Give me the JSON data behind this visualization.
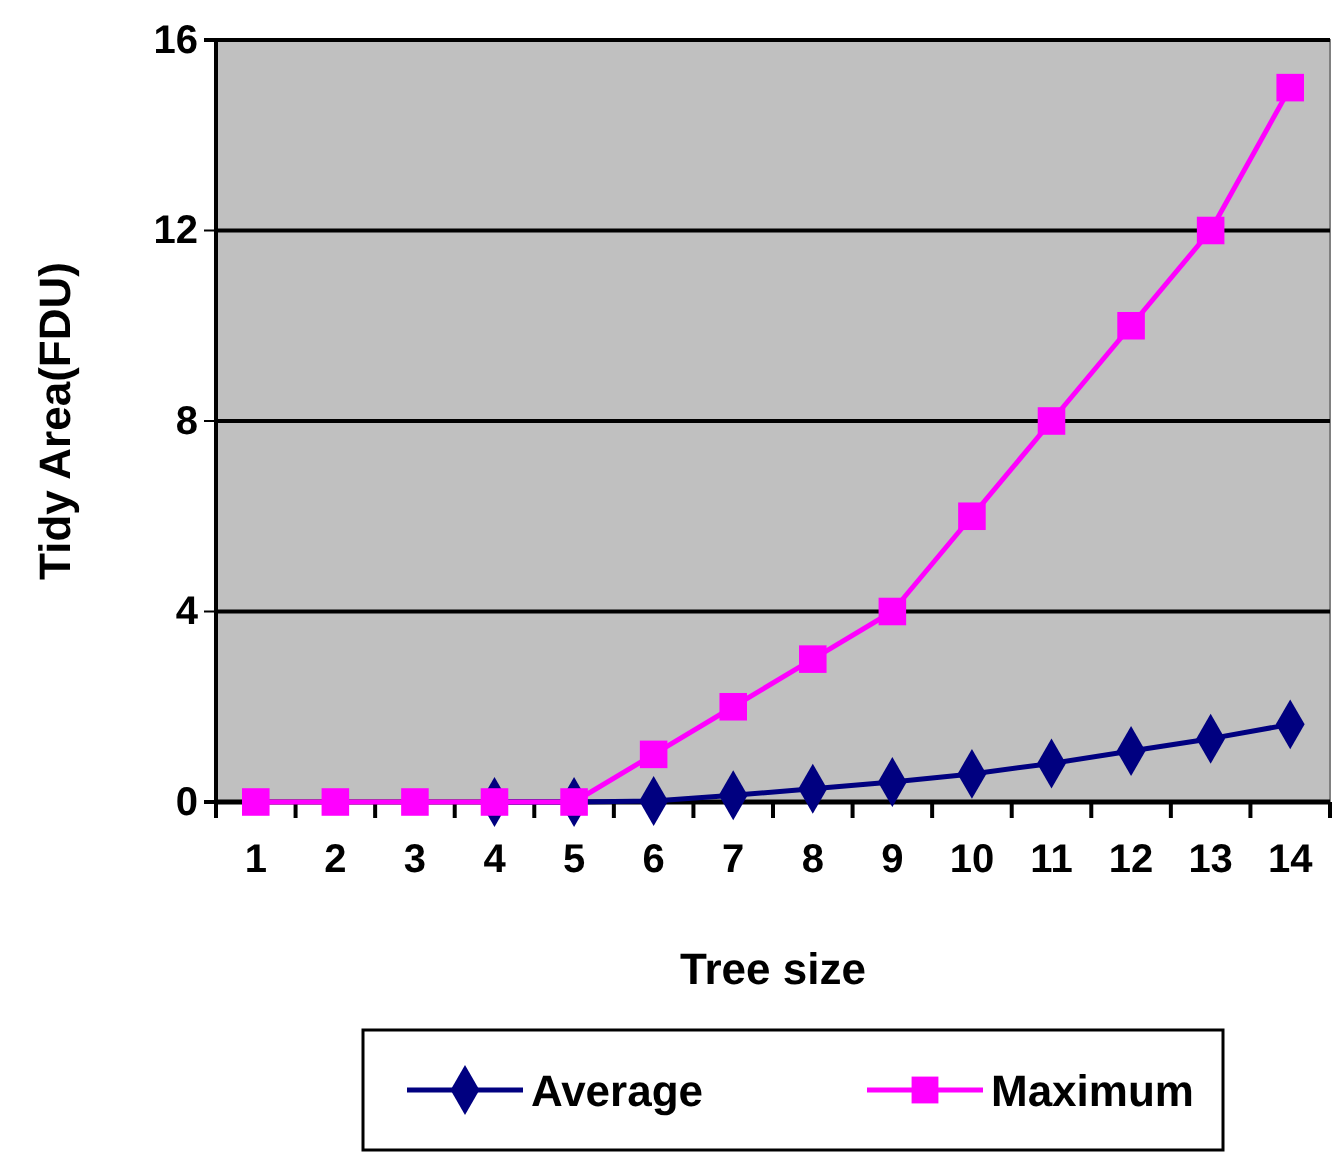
{
  "chart_data": {
    "type": "line",
    "xlabel": "Tree size",
    "ylabel": "Tidy Area(FDU)",
    "categories": [
      "1",
      "2",
      "3",
      "4",
      "5",
      "6",
      "7",
      "8",
      "9",
      "10",
      "11",
      "12",
      "13",
      "14"
    ],
    "series": [
      {
        "name": "Average",
        "color": "#000080",
        "marker": "diamond",
        "values": [
          null,
          null,
          null,
          0,
          0,
          0.02,
          0.14,
          0.28,
          0.42,
          0.59,
          0.81,
          1.07,
          1.33,
          1.63
        ]
      },
      {
        "name": "Maximum",
        "color": "#ff00ff",
        "marker": "square",
        "values": [
          0,
          0,
          0,
          0,
          0,
          1,
          2,
          3,
          4,
          6,
          8,
          10,
          12,
          15
        ]
      }
    ],
    "ylim": [
      0,
      16
    ],
    "yticks": [
      0,
      4,
      8,
      12,
      16
    ],
    "grid": "y",
    "legend": "bottom"
  }
}
